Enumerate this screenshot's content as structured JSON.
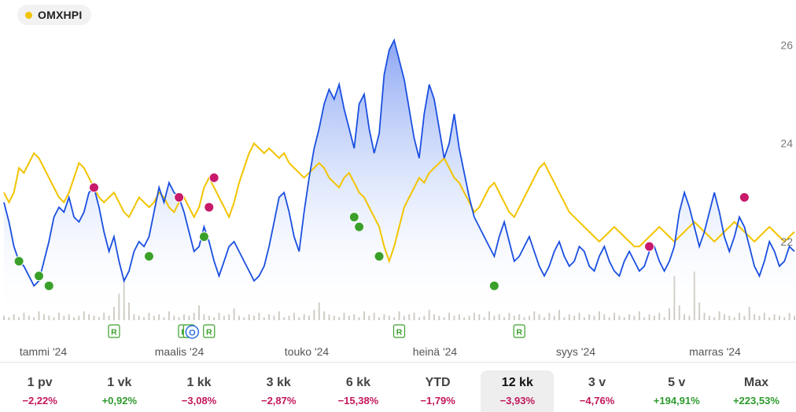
{
  "legend": {
    "label": "OMXHPI",
    "color": "#f2c400"
  },
  "colors": {
    "price_line": "#1a4fe0",
    "index_line": "#f2c400",
    "buy_marker": "#3aa02a",
    "sell_marker": "#c8196b",
    "event_badge": "#3aa02a",
    "volume": "#cfcbc4"
  },
  "chart_data": {
    "type": "line",
    "title": "",
    "xlabel": "",
    "ylabel": "",
    "ylim": [
      20.4,
      26.6
    ],
    "y_ticks": [
      "22",
      "24",
      "26"
    ],
    "x_ticks": [
      "tammi '24",
      "maalis '24",
      "touko '24",
      "heinä '24",
      "syys '24",
      "marras '24"
    ],
    "grid": false,
    "legend_position": "top-left",
    "series": [
      {
        "values": [
          22.8,
          22.4,
          21.9,
          21.6,
          21.5,
          21.3,
          21.1,
          21.2,
          21.6,
          22.0,
          22.5,
          22.7,
          22.6,
          22.9,
          22.5,
          22.4,
          22.6,
          23.0,
          23.1,
          22.7,
          22.2,
          21.8,
          22.1,
          21.6,
          21.2,
          21.4,
          21.8,
          22.0,
          21.9,
          22.1,
          22.6,
          23.1,
          22.8,
          23.2,
          23.0,
          22.9,
          22.6,
          22.2,
          21.8,
          21.9,
          22.3,
          22.0,
          21.6,
          21.3,
          21.6,
          21.9,
          22.0,
          21.8,
          21.6,
          21.4,
          21.2,
          21.3,
          21.5,
          21.9,
          22.4,
          22.9,
          23.0,
          22.6,
          22.1,
          21.8,
          22.6,
          23.3,
          23.9,
          24.3,
          24.8,
          25.1,
          24.9,
          25.2,
          24.7,
          24.3,
          23.9,
          24.8,
          25.0,
          24.3,
          23.8,
          24.2,
          25.4,
          25.9,
          26.1,
          25.7,
          25.3,
          24.7,
          24.1,
          23.7,
          24.6,
          25.2,
          24.9,
          24.3,
          23.7,
          24.0,
          24.6,
          23.9,
          23.4,
          22.9,
          22.5,
          22.3,
          22.1,
          21.9,
          21.7,
          22.1,
          22.4,
          22.0,
          21.6,
          21.7,
          21.9,
          22.1,
          21.8,
          21.5,
          21.3,
          21.5,
          21.8,
          22.0,
          21.7,
          21.5,
          21.6,
          21.9,
          21.8,
          21.5,
          21.4,
          21.7,
          21.9,
          21.6,
          21.4,
          21.3,
          21.6,
          21.8,
          21.6,
          21.4,
          21.5,
          21.8,
          21.9,
          21.6,
          21.4,
          21.6,
          21.9,
          22.6,
          23.0,
          22.7,
          22.3,
          21.9,
          22.2,
          22.6,
          23.0,
          22.6,
          22.1,
          21.8,
          22.1,
          22.5,
          22.3,
          21.9,
          21.5,
          21.3,
          21.6,
          22.0,
          21.8,
          21.5,
          21.6,
          21.9,
          21.8
        ]
      },
      {
        "name": "OMXHPI",
        "values": [
          23.0,
          22.8,
          23.0,
          23.5,
          23.4,
          23.6,
          23.8,
          23.7,
          23.5,
          23.3,
          23.1,
          22.9,
          22.8,
          23.0,
          23.3,
          23.6,
          23.5,
          23.3,
          23.1,
          22.9,
          22.8,
          22.9,
          23.0,
          22.8,
          22.6,
          22.5,
          22.7,
          22.9,
          22.8,
          22.7,
          22.8,
          23.0,
          22.9,
          22.7,
          22.6,
          22.8,
          22.9,
          22.7,
          22.5,
          22.7,
          23.1,
          23.3,
          23.1,
          22.9,
          22.7,
          22.5,
          22.8,
          23.2,
          23.5,
          23.8,
          24.0,
          23.9,
          23.8,
          23.9,
          23.8,
          23.7,
          23.8,
          23.6,
          23.5,
          23.4,
          23.3,
          23.4,
          23.5,
          23.6,
          23.5,
          23.3,
          23.2,
          23.1,
          23.3,
          23.4,
          23.2,
          23.0,
          22.9,
          22.7,
          22.5,
          22.3,
          21.9,
          21.6,
          21.9,
          22.3,
          22.7,
          22.9,
          23.1,
          23.3,
          23.2,
          23.4,
          23.5,
          23.6,
          23.7,
          23.5,
          23.3,
          23.2,
          23.0,
          22.8,
          22.6,
          22.7,
          22.9,
          23.1,
          23.2,
          23.0,
          22.8,
          22.6,
          22.5,
          22.7,
          22.9,
          23.1,
          23.3,
          23.5,
          23.6,
          23.4,
          23.2,
          23.0,
          22.8,
          22.6,
          22.5,
          22.4,
          22.3,
          22.2,
          22.1,
          22.0,
          22.1,
          22.2,
          22.3,
          22.2,
          22.1,
          22.0,
          21.9,
          21.9,
          22.0,
          22.1,
          22.2,
          22.3,
          22.2,
          22.1,
          22.0,
          22.1,
          22.2,
          22.3,
          22.4,
          22.3,
          22.2,
          22.1,
          22.0,
          22.1,
          22.2,
          22.3,
          22.4,
          22.3,
          22.2,
          22.1,
          22.0,
          22.1,
          22.2,
          22.3,
          22.2,
          22.1,
          22.0,
          22.1,
          22.2
        ]
      }
    ],
    "sell_markers": [
      {
        "i": 18,
        "y": 23.1
      },
      {
        "i": 35,
        "y": 22.9
      },
      {
        "i": 41,
        "y": 22.7
      },
      {
        "i": 42,
        "y": 23.3
      },
      {
        "i": 129,
        "y": 21.9
      },
      {
        "i": 148,
        "y": 22.9
      }
    ],
    "buy_markers": [
      {
        "i": 3,
        "y": 21.6
      },
      {
        "i": 7,
        "y": 21.3
      },
      {
        "i": 9,
        "y": 21.1
      },
      {
        "i": 29,
        "y": 21.7
      },
      {
        "i": 40,
        "y": 22.1
      },
      {
        "i": 70,
        "y": 22.5
      },
      {
        "i": 71,
        "y": 22.3
      },
      {
        "i": 75,
        "y": 21.7
      },
      {
        "i": 98,
        "y": 21.1
      }
    ],
    "event_badges": [
      {
        "i": 22,
        "label": "R"
      },
      {
        "i": 36,
        "label": "R"
      },
      {
        "i": 37,
        "label": "O"
      },
      {
        "i": 41,
        "label": "R"
      },
      {
        "i": 79,
        "label": "R"
      },
      {
        "i": 103,
        "label": "R"
      }
    ],
    "volume": [
      3,
      2,
      4,
      2,
      5,
      3,
      2,
      6,
      4,
      3,
      2,
      5,
      3,
      4,
      2,
      3,
      6,
      4,
      3,
      2,
      5,
      3,
      9,
      18,
      28,
      12,
      4,
      3,
      2,
      5,
      3,
      4,
      2,
      6,
      3,
      2,
      4,
      3,
      5,
      10,
      4,
      3,
      2,
      5,
      3,
      4,
      8,
      3,
      2,
      4,
      3,
      5,
      2,
      4,
      3,
      6,
      2,
      3,
      5,
      2,
      4,
      3,
      7,
      12,
      6,
      4,
      3,
      2,
      5,
      3,
      4,
      2,
      6,
      3,
      5,
      2,
      4,
      3,
      2,
      6,
      3,
      4,
      5,
      2,
      3,
      7,
      4,
      3,
      2,
      5,
      3,
      4,
      2,
      3,
      5,
      4,
      2,
      6,
      3,
      4,
      2,
      5,
      3,
      4,
      2,
      3,
      6,
      4,
      2,
      5,
      3,
      7,
      2,
      4,
      3,
      5,
      2,
      4,
      3,
      6,
      4,
      2,
      5,
      3,
      2,
      4,
      3,
      6,
      2,
      4,
      3,
      5,
      2,
      8,
      30,
      10,
      4,
      3,
      33,
      12,
      5,
      3,
      2,
      6,
      4,
      3,
      2,
      5,
      3,
      9,
      4,
      3,
      5,
      2,
      4,
      3,
      2,
      5,
      3
    ]
  },
  "periods": [
    {
      "label": "1 pv",
      "change": "−2,22%",
      "sign": "neg",
      "active": false
    },
    {
      "label": "1 vk",
      "change": "+0,92%",
      "sign": "pos",
      "active": false
    },
    {
      "label": "1 kk",
      "change": "−3,08%",
      "sign": "neg",
      "active": false
    },
    {
      "label": "3 kk",
      "change": "−2,87%",
      "sign": "neg",
      "active": false
    },
    {
      "label": "6 kk",
      "change": "−15,38%",
      "sign": "neg",
      "active": false
    },
    {
      "label": "YTD",
      "change": "−1,79%",
      "sign": "neg",
      "active": false
    },
    {
      "label": "12 kk",
      "change": "−3,93%",
      "sign": "neg",
      "active": true
    },
    {
      "label": "3 v",
      "change": "−4,76%",
      "sign": "neg",
      "active": false
    },
    {
      "label": "5 v",
      "change": "+194,91%",
      "sign": "pos",
      "active": false
    },
    {
      "label": "Max",
      "change": "+223,53%",
      "sign": "pos",
      "active": false
    }
  ]
}
